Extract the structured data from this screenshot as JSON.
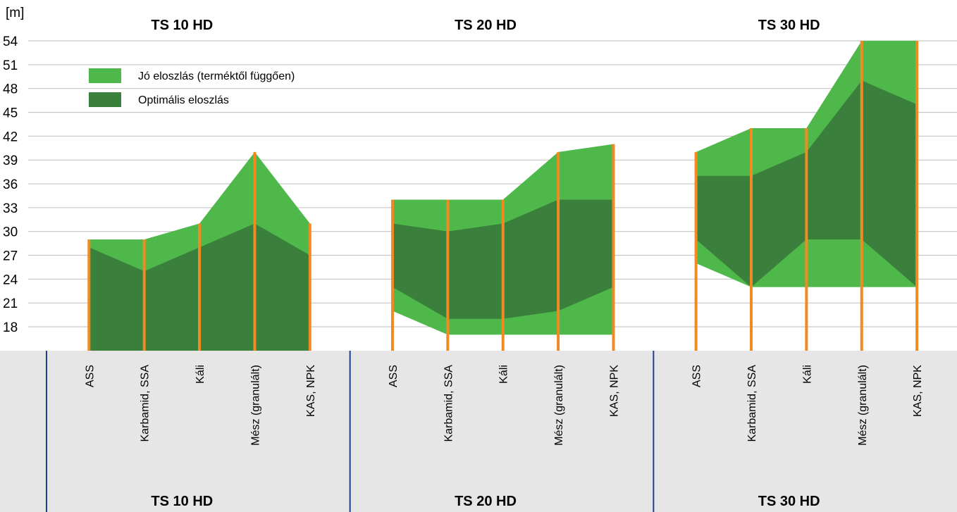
{
  "chart_data": {
    "type": "area",
    "ylabel": "[m]",
    "y_ticks": [
      18,
      21,
      24,
      27,
      30,
      33,
      36,
      39,
      42,
      45,
      48,
      51,
      54
    ],
    "ylim": [
      15,
      55.5
    ],
    "grid": true,
    "legend_position": "top-left",
    "colors": {
      "good": "#4fb84a",
      "optimal": "#3b7f3c",
      "marker": "#f28a24",
      "grid": "#c6c6c6",
      "band": "#e6e6e6",
      "divider": "#1f3f8f"
    },
    "legend": [
      {
        "key": "good",
        "label": "Jó eloszlás (terméktől függően)"
      },
      {
        "key": "optimal",
        "label": "Optimális eloszlás"
      }
    ],
    "categories": [
      "ASS",
      "Karbamid, SSA",
      "Káli",
      "Mész (granulált)",
      "KAS, NPK"
    ],
    "groups": [
      {
        "name": "TS 10 HD",
        "good_high": [
          29,
          29,
          31,
          40,
          31
        ],
        "good_low": [
          15,
          15,
          15,
          15,
          15
        ],
        "optimal_high": [
          28,
          25,
          28,
          31,
          27
        ],
        "optimal_low": [
          15,
          15,
          15,
          15,
          15
        ]
      },
      {
        "name": "TS 20 HD",
        "good_high": [
          34,
          34,
          34,
          40,
          41
        ],
        "good_low": [
          20,
          17,
          17,
          17,
          17
        ],
        "optimal_high": [
          31,
          30,
          31,
          34,
          34
        ],
        "optimal_low": [
          23,
          19,
          19,
          20,
          23
        ]
      },
      {
        "name": "TS 30 HD",
        "good_high": [
          40,
          43,
          43,
          54,
          54
        ],
        "good_low": [
          26,
          23,
          23,
          23,
          23
        ],
        "optimal_high": [
          37,
          37,
          40,
          49,
          46
        ],
        "optimal_low": [
          29,
          23,
          29,
          29,
          23
        ]
      }
    ]
  }
}
